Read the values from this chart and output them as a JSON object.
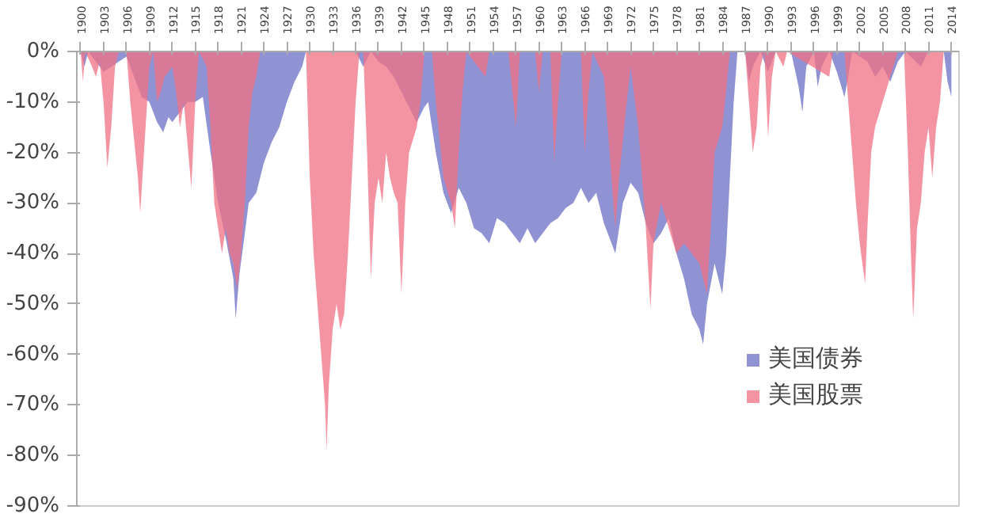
{
  "chart_data": {
    "type": "area",
    "xlim": [
      1899.5,
      2015
    ],
    "xticks": [
      1900,
      1903,
      1906,
      1909,
      1912,
      1915,
      1918,
      1921,
      1924,
      1927,
      1930,
      1933,
      1936,
      1939,
      1942,
      1945,
      1948,
      1951,
      1954,
      1957,
      1960,
      1963,
      1966,
      1969,
      1972,
      1975,
      1978,
      1981,
      1984,
      1987,
      1990,
      1993,
      1996,
      1999,
      2002,
      2005,
      2008,
      2011,
      2014
    ],
    "ylim": [
      -90,
      0
    ],
    "yticks": [
      {
        "value": 0,
        "label": "0%"
      },
      {
        "value": -10,
        "label": "-10%"
      },
      {
        "value": -20,
        "label": "-20%"
      },
      {
        "value": -30,
        "label": "-30%"
      },
      {
        "value": -40,
        "label": "-40%"
      },
      {
        "value": -50,
        "label": "-50%"
      },
      {
        "value": -60,
        "label": "-60%"
      },
      {
        "value": -70,
        "label": "-70%"
      },
      {
        "value": -80,
        "label": "-80%"
      },
      {
        "value": -90,
        "label": "-90%"
      }
    ],
    "grid": false,
    "legend": "bottom right",
    "series": [
      {
        "name": "美国债券",
        "color": "#6b6fc4",
        "x": [
          1900,
          1900.5,
          1901,
          1902,
          1903,
          1904,
          1905,
          1906,
          1907,
          1908,
          1909,
          1910,
          1910.8,
          1911.5,
          1912,
          1913,
          1914,
          1915,
          1916,
          1917,
          1918,
          1919,
          1920,
          1920.3,
          1920.8,
          1921.5,
          1922,
          1923,
          1924,
          1925,
          1926,
          1927,
          1928,
          1929,
          1929.5,
          1936,
          1937,
          1938,
          1939,
          1940,
          1941,
          1942,
          1943,
          1944,
          1945,
          1945.5,
          1946.5,
          1947.5,
          1948.5,
          1949.5,
          1950.5,
          1951.5,
          1952.5,
          1953.5,
          1954.5,
          1955.5,
          1956.5,
          1957.5,
          1958.5,
          1959.5,
          1960.5,
          1961.5,
          1962.5,
          1963.5,
          1964.5,
          1965.5,
          1966.5,
          1967.5,
          1968.5,
          1969.5,
          1970,
          1971,
          1972,
          1973,
          1974,
          1975,
          1976,
          1977,
          1978,
          1979,
          1980,
          1981,
          1981.5,
          1982,
          1983,
          1984,
          1984.5,
          1985,
          1985.5,
          1986,
          1987,
          1987.5,
          1988,
          1989,
          1990,
          1991,
          1993,
          1994,
          1994.5,
          1995,
          1996,
          1996.5,
          1997,
          1998,
          1999,
          2000,
          2000.5,
          2001,
          2003,
          2004,
          2005,
          2006,
          2007,
          2008,
          2010,
          2011,
          2013,
          2013.5,
          2014
        ],
        "values": [
          0,
          -3,
          0,
          -2,
          -4,
          -3,
          -2,
          -1,
          -5,
          -9,
          -10,
          -14,
          -16,
          -13,
          -14,
          -12,
          -10,
          -10,
          -9,
          -20,
          -30,
          -37,
          -45,
          -53,
          -44,
          -36,
          -30,
          -28,
          -22,
          -18,
          -15,
          -10,
          -6,
          -3,
          0,
          0,
          -3,
          0,
          -2,
          -3,
          -5,
          -8,
          -11,
          -14,
          -11,
          -10,
          -20,
          -28,
          -32,
          -27,
          -30,
          -35,
          -36,
          -38,
          -33,
          -34,
          -36,
          -38,
          -35,
          -38,
          -36,
          -34,
          -33,
          -31,
          -30,
          -27,
          -30,
          -28,
          -34,
          -38,
          -40,
          -30,
          -26,
          -28,
          -34,
          -38,
          -36,
          -33,
          -40,
          -45,
          -52,
          -55,
          -58,
          -50,
          -42,
          -48,
          -40,
          -25,
          -10,
          0,
          0,
          -6,
          -3,
          0,
          -4,
          0,
          0,
          -7,
          -12,
          -3,
          0,
          -7,
          -3,
          0,
          -4,
          -9,
          -5,
          0,
          -2,
          -5,
          -3,
          -6,
          -2,
          0,
          -3,
          0,
          0,
          -6,
          -9
        ]
      },
      {
        "name": "美国股票",
        "color": "#f07083",
        "x": [
          1900,
          1900.3,
          1900.6,
          1901.5,
          1902,
          1902.5,
          1903,
          1903.5,
          1904,
          1904.5,
          1905,
          1906,
          1906.5,
          1907.5,
          1907.8,
          1908.5,
          1909,
          1909.5,
          1910,
          1910.5,
          1911,
          1912,
          1912.5,
          1913,
          1913.5,
          1914.5,
          1915,
          1915.5,
          1916.5,
          1917,
          1917.5,
          1918.5,
          1919,
          1919.5,
          1920,
          1920.5,
          1921,
          1921.5,
          1922,
          1922.5,
          1923,
          1923.5,
          1929.5,
          1930,
          1930.5,
          1931,
          1931.5,
          1932,
          1932.2,
          1932.5,
          1933,
          1933.5,
          1934,
          1934.5,
          1935,
          1935.5,
          1936,
          1936.5,
          1937,
          1937.5,
          1938,
          1938.5,
          1939,
          1939.5,
          1940,
          1940.5,
          1941,
          1941.5,
          1942,
          1942.5,
          1943,
          1944,
          1944.5,
          1945,
          1946,
          1946.5,
          1947.5,
          1948.5,
          1949,
          1949.5,
          1950,
          1950.5,
          1953,
          1953.5,
          1956,
          1957,
          1957.5,
          1959.5,
          1960,
          1960.5,
          1961.5,
          1962,
          1962.5,
          1963,
          1965.5,
          1966,
          1966.5,
          1967,
          1968.5,
          1969.5,
          1970,
          1970.5,
          1971.5,
          1972,
          1973,
          1974,
          1974.6,
          1975,
          1976,
          1977,
          1978,
          1979,
          1980,
          1981,
          1982,
          1982.5,
          1983,
          1984,
          1984.5,
          1985,
          1987,
          1987.5,
          1988,
          1988.5,
          1989,
          1989.5,
          1990,
          1990.5,
          1991,
          1992,
          1992.5,
          1998,
          1998.5,
          2000,
          2000.5,
          2001,
          2001.5,
          2002,
          2002.7,
          2003,
          2003.5,
          2004,
          2005,
          2006,
          2007,
          2007.8,
          2008.3,
          2008.7,
          2009,
          2009.5,
          2010,
          2010.5,
          2011,
          2011.5,
          2012,
          2012.5,
          2013,
          2014
        ],
        "values": [
          0,
          -6,
          0,
          -3,
          -5,
          -2,
          -10,
          -23,
          -15,
          -3,
          0,
          0,
          -10,
          -25,
          -32,
          -15,
          -3,
          0,
          -10,
          -8,
          -5,
          -3,
          -8,
          -15,
          -10,
          -27,
          -10,
          0,
          -3,
          -15,
          -30,
          -40,
          -35,
          -40,
          -42,
          -47,
          -40,
          -30,
          -15,
          -8,
          -5,
          0,
          0,
          -25,
          -40,
          -50,
          -60,
          -70,
          -79,
          -66,
          -55,
          -50,
          -55,
          -52,
          -40,
          -25,
          -10,
          0,
          0,
          -20,
          -45,
          -30,
          -25,
          -30,
          -20,
          -25,
          -28,
          -30,
          -48,
          -30,
          -20,
          -15,
          -10,
          0,
          0,
          -10,
          -25,
          -30,
          -35,
          -20,
          -8,
          0,
          -5,
          0,
          0,
          -15,
          0,
          0,
          -8,
          0,
          0,
          -22,
          -10,
          0,
          0,
          -20,
          -8,
          0,
          -5,
          -25,
          -35,
          -25,
          -10,
          -3,
          -15,
          -35,
          -51,
          -38,
          -30,
          -35,
          -40,
          -38,
          -40,
          -42,
          -48,
          -35,
          -20,
          -15,
          -8,
          0,
          0,
          -10,
          -20,
          -15,
          -3,
          0,
          -17,
          -5,
          0,
          -3,
          0,
          -5,
          0,
          0,
          -10,
          -20,
          -30,
          -38,
          -46,
          -35,
          -20,
          -15,
          -10,
          -5,
          0,
          0,
          -20,
          -40,
          -53,
          -35,
          -30,
          -20,
          -15,
          -25,
          -15,
          -10,
          0,
          0
        ]
      }
    ]
  }
}
